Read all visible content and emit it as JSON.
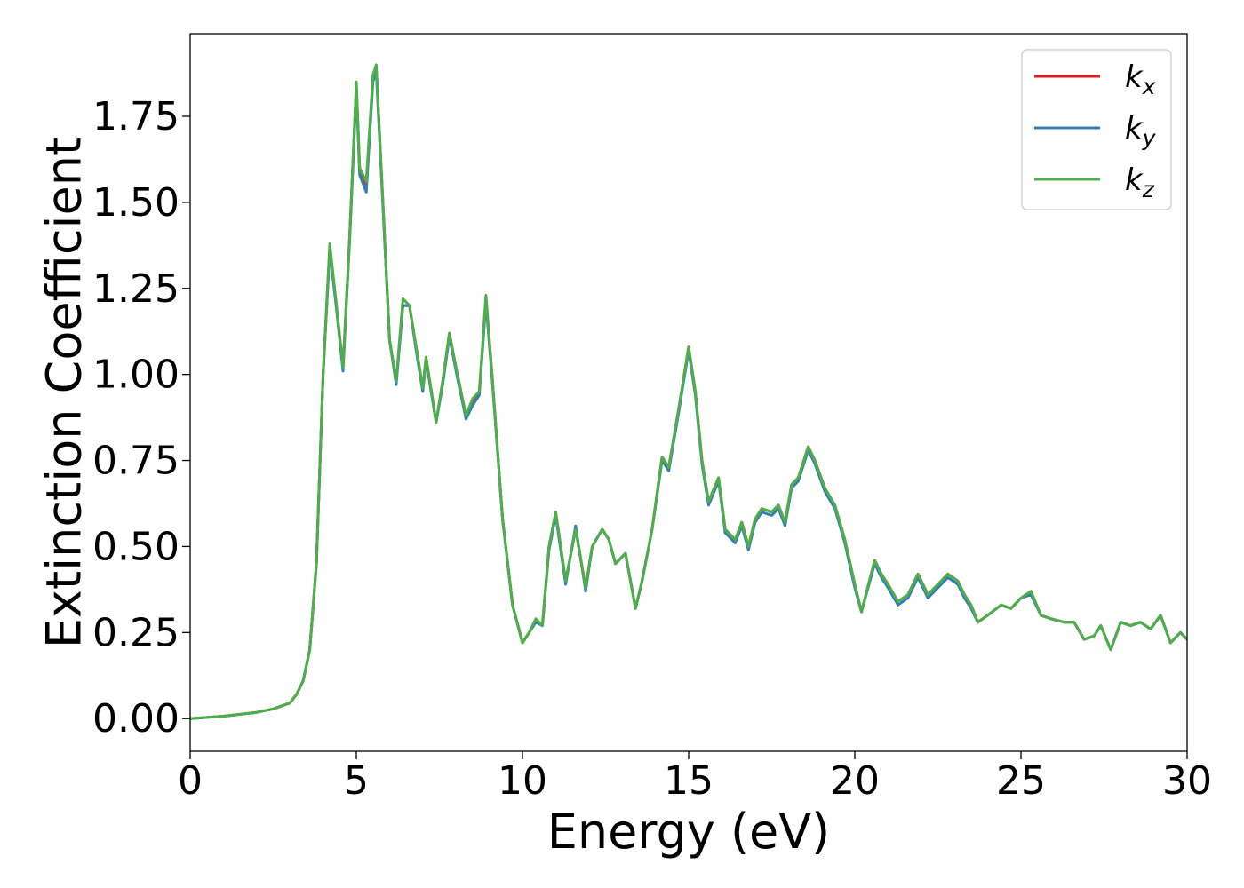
{
  "chart_data": {
    "type": "line",
    "title": "",
    "xlabel": "Energy (eV)",
    "ylabel": "Extinction Coefficient",
    "xlim": [
      0,
      30
    ],
    "ylim": [
      -0.095,
      1.99
    ],
    "xticks": [
      0,
      5,
      10,
      15,
      20,
      25,
      30
    ],
    "xtick_labels": [
      "0",
      "5",
      "10",
      "15",
      "20",
      "25",
      "30"
    ],
    "yticks": [
      0.0,
      0.25,
      0.5,
      0.75,
      1.0,
      1.25,
      1.5,
      1.75
    ],
    "ytick_labels": [
      "0.00",
      "0.25",
      "0.50",
      "0.75",
      "1.00",
      "1.25",
      "1.50",
      "1.75"
    ],
    "grid": false,
    "legend_position": "top-right",
    "x": [
      0,
      1,
      2,
      2.5,
      3,
      3.2,
      3.4,
      3.6,
      3.8,
      4.0,
      4.2,
      4.4,
      4.6,
      4.8,
      5.0,
      5.1,
      5.3,
      5.5,
      5.6,
      5.8,
      6.0,
      6.2,
      6.4,
      6.6,
      6.8,
      7.0,
      7.1,
      7.4,
      7.6,
      7.8,
      8.0,
      8.3,
      8.5,
      8.7,
      8.9,
      9.1,
      9.4,
      9.7,
      10.0,
      10.2,
      10.4,
      10.6,
      10.8,
      11.0,
      11.3,
      11.6,
      11.9,
      12.1,
      12.4,
      12.6,
      12.8,
      13.1,
      13.4,
      13.6,
      13.9,
      14.2,
      14.4,
      14.7,
      15.0,
      15.2,
      15.4,
      15.6,
      15.9,
      16.1,
      16.4,
      16.6,
      16.8,
      17.0,
      17.2,
      17.5,
      17.7,
      17.9,
      18.1,
      18.3,
      18.6,
      18.8,
      19.1,
      19.4,
      19.7,
      20.0,
      20.2,
      20.6,
      20.8,
      21.0,
      21.3,
      21.6,
      21.9,
      22.2,
      22.5,
      22.8,
      23.1,
      23.3,
      23.5,
      23.7,
      24.0,
      24.4,
      24.7,
      25.0,
      25.3,
      25.6,
      25.9,
      26.3,
      26.6,
      26.9,
      27.2,
      27.4,
      27.7,
      28.0,
      28.3,
      28.6,
      28.9,
      29.2,
      29.5,
      29.8,
      30.0
    ],
    "series": [
      {
        "name": "k_x",
        "color": "#e41a1c",
        "values": [
          0.0,
          0.007,
          0.018,
          0.028,
          0.045,
          0.07,
          0.11,
          0.2,
          0.45,
          1.0,
          1.37,
          1.2,
          1.02,
          1.4,
          1.84,
          1.6,
          1.55,
          1.86,
          1.89,
          1.5,
          1.1,
          0.98,
          1.2,
          1.2,
          1.08,
          0.96,
          1.05,
          0.86,
          0.98,
          1.12,
          1.02,
          0.88,
          0.92,
          0.95,
          1.22,
          0.98,
          0.58,
          0.33,
          0.22,
          0.25,
          0.28,
          0.27,
          0.5,
          0.6,
          0.4,
          0.55,
          0.38,
          0.5,
          0.55,
          0.52,
          0.45,
          0.48,
          0.32,
          0.4,
          0.55,
          0.76,
          0.73,
          0.9,
          1.08,
          0.95,
          0.75,
          0.63,
          0.7,
          0.55,
          0.52,
          0.57,
          0.5,
          0.58,
          0.61,
          0.6,
          0.62,
          0.57,
          0.68,
          0.7,
          0.79,
          0.75,
          0.67,
          0.62,
          0.52,
          0.39,
          0.31,
          0.46,
          0.42,
          0.39,
          0.34,
          0.36,
          0.42,
          0.36,
          0.39,
          0.42,
          0.4,
          0.36,
          0.33,
          0.28,
          0.3,
          0.33,
          0.32,
          0.35,
          0.37,
          0.3,
          0.29,
          0.28,
          0.28,
          0.23,
          0.24,
          0.27,
          0.2,
          0.28,
          0.27,
          0.28,
          0.26,
          0.3,
          0.22,
          0.25,
          0.23
        ]
      },
      {
        "name": "k_y",
        "color": "#377eb8",
        "values": [
          0.0,
          0.007,
          0.018,
          0.028,
          0.045,
          0.07,
          0.11,
          0.2,
          0.45,
          1.0,
          1.36,
          1.19,
          1.01,
          1.39,
          1.83,
          1.58,
          1.53,
          1.85,
          1.88,
          1.49,
          1.1,
          0.97,
          1.2,
          1.2,
          1.07,
          0.95,
          1.04,
          0.86,
          0.97,
          1.11,
          1.01,
          0.87,
          0.91,
          0.94,
          1.21,
          0.97,
          0.58,
          0.33,
          0.22,
          0.25,
          0.28,
          0.27,
          0.49,
          0.59,
          0.39,
          0.56,
          0.37,
          0.5,
          0.55,
          0.52,
          0.45,
          0.48,
          0.32,
          0.4,
          0.55,
          0.75,
          0.72,
          0.89,
          1.07,
          0.94,
          0.74,
          0.62,
          0.69,
          0.54,
          0.51,
          0.56,
          0.49,
          0.57,
          0.6,
          0.59,
          0.61,
          0.56,
          0.67,
          0.69,
          0.78,
          0.74,
          0.66,
          0.61,
          0.51,
          0.38,
          0.31,
          0.45,
          0.41,
          0.38,
          0.33,
          0.35,
          0.41,
          0.35,
          0.38,
          0.41,
          0.39,
          0.35,
          0.32,
          0.28,
          0.3,
          0.33,
          0.32,
          0.35,
          0.36,
          0.3,
          0.29,
          0.28,
          0.28,
          0.23,
          0.24,
          0.27,
          0.2,
          0.28,
          0.27,
          0.28,
          0.26,
          0.3,
          0.22,
          0.25,
          0.23
        ]
      },
      {
        "name": "k_z",
        "color": "#4daf4a",
        "values": [
          0.0,
          0.007,
          0.018,
          0.028,
          0.045,
          0.07,
          0.11,
          0.2,
          0.45,
          1.0,
          1.38,
          1.2,
          1.02,
          1.4,
          1.85,
          1.6,
          1.56,
          1.87,
          1.9,
          1.5,
          1.1,
          0.98,
          1.22,
          1.2,
          1.08,
          0.96,
          1.05,
          0.86,
          0.98,
          1.12,
          1.02,
          0.88,
          0.93,
          0.95,
          1.23,
          0.98,
          0.58,
          0.33,
          0.22,
          0.25,
          0.29,
          0.27,
          0.5,
          0.6,
          0.4,
          0.55,
          0.38,
          0.5,
          0.55,
          0.52,
          0.45,
          0.48,
          0.32,
          0.4,
          0.55,
          0.76,
          0.73,
          0.9,
          1.08,
          0.95,
          0.75,
          0.63,
          0.7,
          0.55,
          0.52,
          0.57,
          0.5,
          0.58,
          0.61,
          0.6,
          0.62,
          0.57,
          0.68,
          0.7,
          0.79,
          0.75,
          0.67,
          0.62,
          0.52,
          0.39,
          0.31,
          0.46,
          0.42,
          0.39,
          0.34,
          0.36,
          0.42,
          0.36,
          0.39,
          0.42,
          0.4,
          0.36,
          0.33,
          0.28,
          0.3,
          0.33,
          0.32,
          0.35,
          0.37,
          0.3,
          0.29,
          0.28,
          0.28,
          0.23,
          0.24,
          0.27,
          0.2,
          0.28,
          0.27,
          0.28,
          0.26,
          0.3,
          0.22,
          0.25,
          0.23
        ]
      }
    ],
    "legend": [
      {
        "base": "k",
        "sub": "x",
        "color": "#e41a1c"
      },
      {
        "base": "k",
        "sub": "y",
        "color": "#377eb8"
      },
      {
        "base": "k",
        "sub": "z",
        "color": "#4daf4a"
      }
    ]
  }
}
